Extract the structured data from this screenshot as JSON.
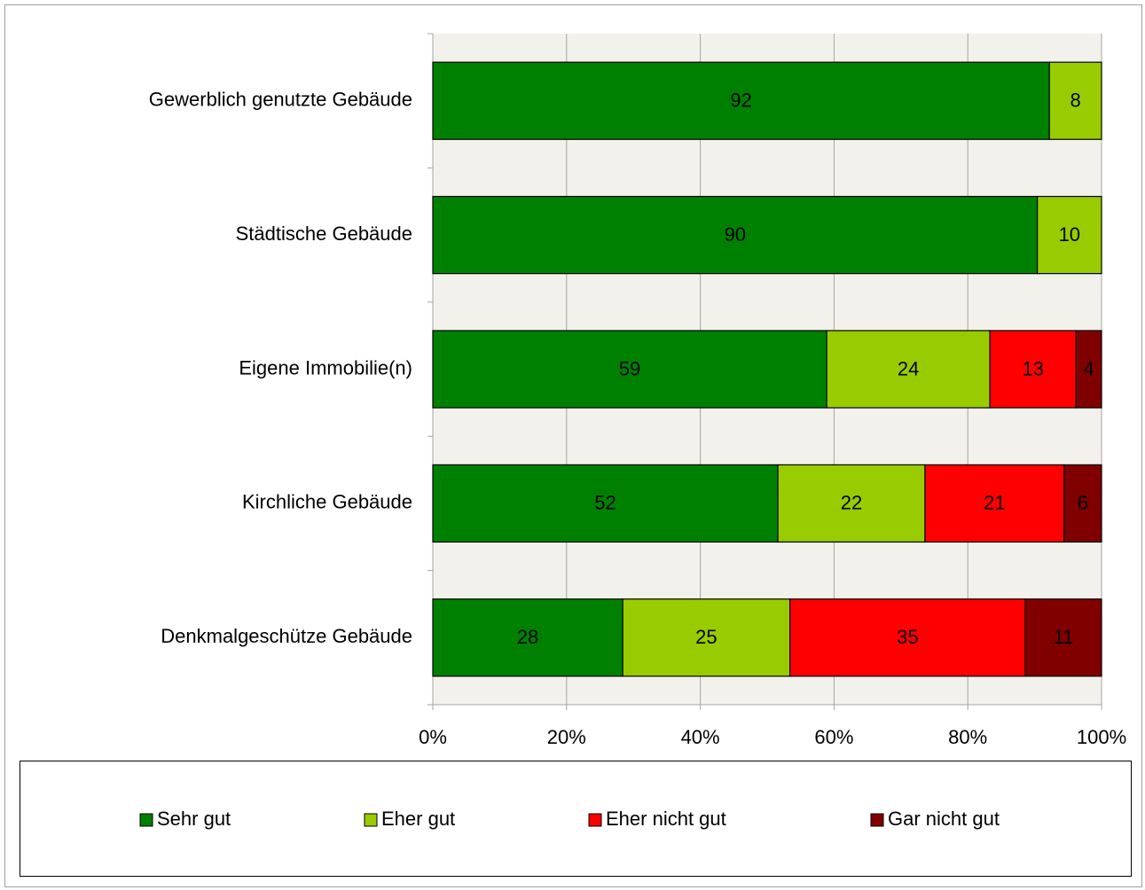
{
  "chart_data": {
    "type": "bar",
    "orientation": "horizontal",
    "stacked": true,
    "categories": [
      "Gewerblich genutzte Gebäude",
      "Städtische Gebäude",
      "Eigene Immobilie(n)",
      "Kirchliche Gebäude",
      "Denkmalgeschütze Gebäude"
    ],
    "series": [
      {
        "name": "Sehr gut",
        "color": "#008000",
        "values": [
          92.2,
          90.4,
          58.9,
          51.6,
          28.4
        ],
        "value_labels": [
          "92",
          "90",
          "59",
          "52",
          "28"
        ]
      },
      {
        "name": "Eher gut",
        "color": "#99cc00",
        "values": [
          7.8,
          9.6,
          24.4,
          22.0,
          25.0
        ],
        "value_labels": [
          "8",
          "10",
          "24",
          "22",
          "25"
        ]
      },
      {
        "name": "Eher nicht gut",
        "color": "#ff0000",
        "values": [
          null,
          null,
          12.9,
          20.8,
          35.2
        ],
        "value_labels": [
          null,
          null,
          "13",
          "21",
          "35"
        ]
      },
      {
        "name": "Gar nicht gut",
        "color": "#800000",
        "values": [
          null,
          null,
          3.8,
          5.6,
          11.4
        ],
        "value_labels": [
          null,
          null,
          "4",
          "6",
          "11"
        ]
      }
    ],
    "xlim": [
      0,
      100
    ],
    "xticks": [
      {
        "value": 0,
        "label": "0%"
      },
      {
        "value": 20,
        "label": "20%"
      },
      {
        "value": 40,
        "label": "40%"
      },
      {
        "value": 60,
        "label": "60%"
      },
      {
        "value": 80,
        "label": "80%"
      },
      {
        "value": 100,
        "label": "100%"
      }
    ],
    "grid": true,
    "legend": "bottom"
  }
}
